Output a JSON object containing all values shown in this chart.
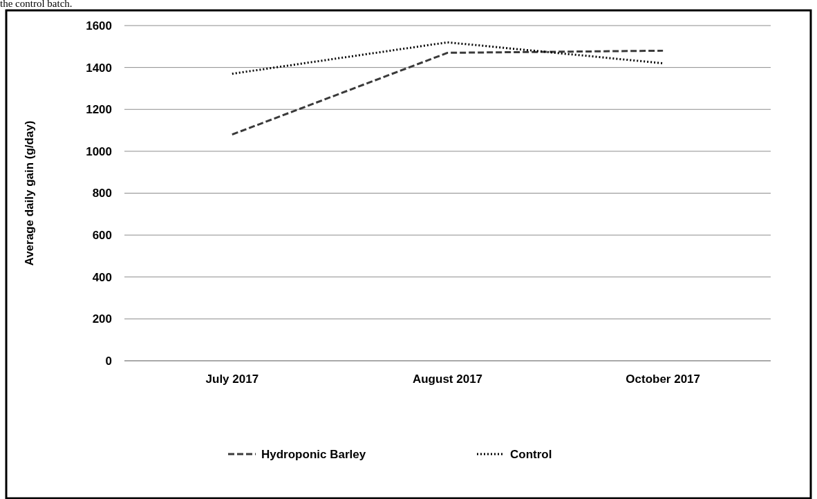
{
  "chart_data": {
    "type": "line",
    "ylabel": "Average daily gain (g/day)",
    "annotations": [
      "the control batch."
    ],
    "categories": [
      "July 2017",
      "August 2017",
      "October 2017"
    ],
    "series": [
      {
        "name": "Hydroponic Barley",
        "color": "#3a3a3a",
        "values": [
          1080,
          1470,
          1480
        ],
        "line_style": "dashed"
      },
      {
        "name": "Control",
        "color": "#000000",
        "values": [
          1370,
          1520,
          1420
        ],
        "line_style": "dotted"
      }
    ],
    "ylim": [
      0,
      1600
    ],
    "yticks": [
      0,
      200,
      400,
      600,
      800,
      1000,
      1200,
      1400,
      1600
    ],
    "grid": "y",
    "legend": "bottom",
    "marker": "none"
  }
}
